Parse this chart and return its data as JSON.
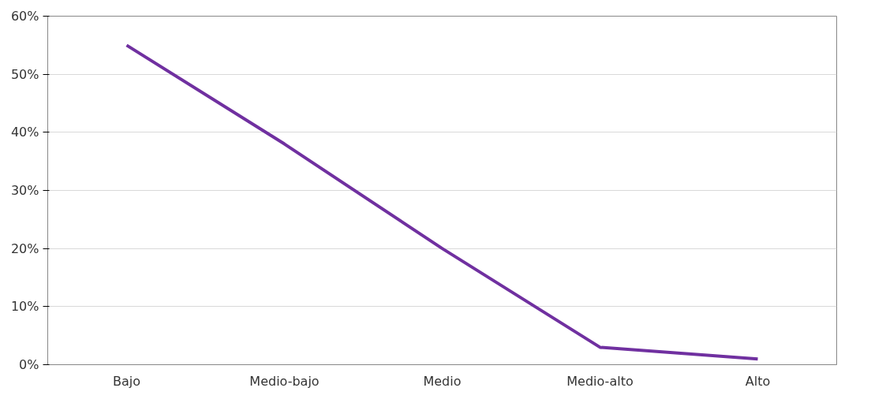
{
  "chart_data": {
    "type": "line",
    "categories": [
      "Bajo",
      "Medio-bajo",
      "Medio",
      "Medio-alto",
      "Alto"
    ],
    "series": [
      {
        "color": "#7030a0",
        "values": [
          55,
          38,
          20,
          3,
          1
        ]
      }
    ],
    "ylim": [
      0,
      60
    ],
    "yticks": [
      {
        "value": 0,
        "label": "0%"
      },
      {
        "value": 10,
        "label": "10%"
      },
      {
        "value": 20,
        "label": "20%"
      },
      {
        "value": 30,
        "label": "30%"
      },
      {
        "value": 40,
        "label": "40%"
      },
      {
        "value": 50,
        "label": "50%"
      },
      {
        "value": 60,
        "label": "60%"
      }
    ],
    "grid": "y",
    "marker": "none",
    "line_style": "solid"
  }
}
